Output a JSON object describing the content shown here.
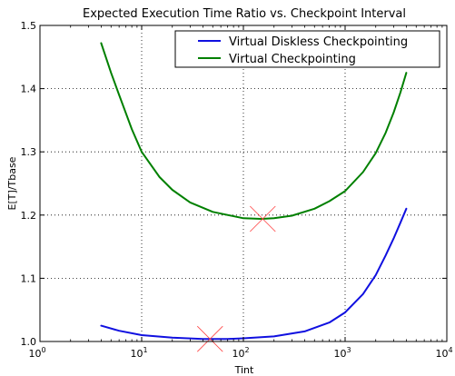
{
  "chart_data": {
    "type": "line",
    "title": "Expected Execution Time Ratio vs. Checkpoint Interval",
    "xlabel": "Tint",
    "ylabel": "E[T]/Tbase",
    "xscale": "log",
    "xlim": [
      1,
      10000
    ],
    "ylim": [
      1.0,
      1.5
    ],
    "grid": true,
    "legend_position": "top-right",
    "x_ticks": [
      {
        "base": "10",
        "exp": "0",
        "value": 1
      },
      {
        "base": "10",
        "exp": "1",
        "value": 10
      },
      {
        "base": "10",
        "exp": "2",
        "value": 100
      },
      {
        "base": "10",
        "exp": "3",
        "value": 1000
      },
      {
        "base": "10",
        "exp": "4",
        "value": 10000
      }
    ],
    "y_ticks": [
      "1.0",
      "1.1",
      "1.2",
      "1.3",
      "1.4",
      "1.5"
    ],
    "series": [
      {
        "name": "Virtual Diskless Checkpointing",
        "color": "#1010e0",
        "x": [
          4,
          6,
          10,
          20,
          40,
          70,
          100,
          200,
          400,
          700,
          1000,
          1500,
          2000,
          2500,
          3000,
          3500,
          4000
        ],
        "y": [
          1.025,
          1.017,
          1.01,
          1.006,
          1.004,
          1.004,
          1.005,
          1.008,
          1.016,
          1.03,
          1.046,
          1.075,
          1.105,
          1.136,
          1.163,
          1.188,
          1.21
        ]
      },
      {
        "name": "Virtual Checkpointing",
        "color": "#008000",
        "x": [
          4,
          5,
          6,
          8,
          10,
          15,
          20,
          30,
          50,
          100,
          150,
          200,
          300,
          500,
          700,
          1000,
          1500,
          2000,
          2500,
          3000,
          3500,
          4000
        ],
        "y": [
          1.472,
          1.425,
          1.39,
          1.336,
          1.3,
          1.26,
          1.24,
          1.22,
          1.205,
          1.195,
          1.194,
          1.195,
          1.199,
          1.21,
          1.222,
          1.238,
          1.268,
          1.298,
          1.33,
          1.362,
          1.394,
          1.425
        ]
      }
    ],
    "markers": [
      {
        "x": 47,
        "y": 1.004,
        "symbol": "x",
        "color": "#ff4040"
      },
      {
        "x": 155,
        "y": 1.194,
        "symbol": "x",
        "color": "#ff4040"
      }
    ]
  }
}
